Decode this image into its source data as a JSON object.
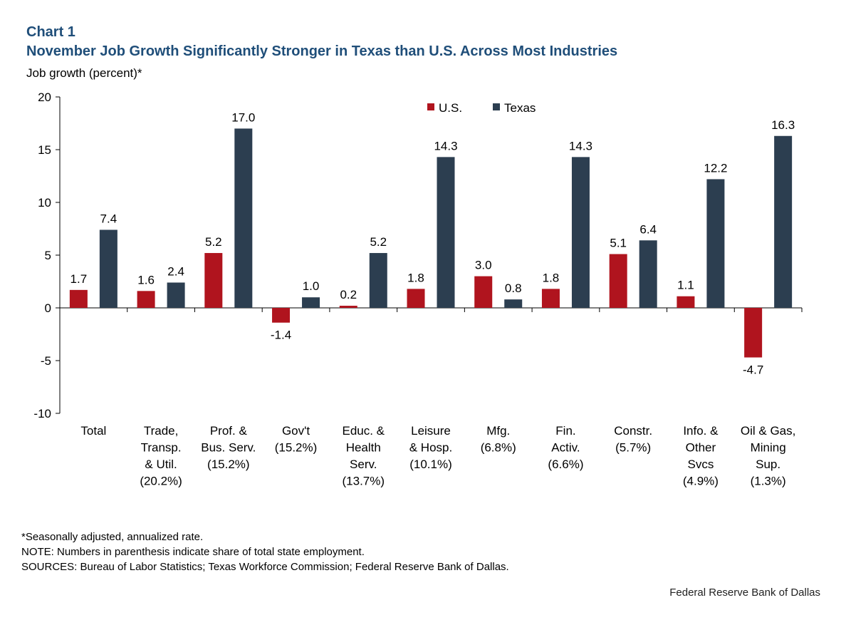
{
  "header": {
    "chart_label": "Chart 1",
    "title": "November Job Growth Significantly Stronger in Texas than U.S. Across Most Industries",
    "y_axis_label": "Job growth (percent)*"
  },
  "chart_data": {
    "type": "bar",
    "categories": [
      [
        "Total"
      ],
      [
        "Trade,",
        "Transp.",
        "& Util.",
        "(20.2%)"
      ],
      [
        "Prof. &",
        "Bus. Serv.",
        "(15.2%)"
      ],
      [
        "Gov't",
        "(15.2%)"
      ],
      [
        "Educ. &",
        "Health",
        "Serv.",
        "(13.7%)"
      ],
      [
        "Leisure",
        "& Hosp.",
        "(10.1%)"
      ],
      [
        "Mfg.",
        "(6.8%)"
      ],
      [
        "Fin.",
        "Activ.",
        "(6.6%)"
      ],
      [
        "Constr.",
        "(5.7%)"
      ],
      [
        "Info. &",
        "Other",
        "Svcs",
        "(4.9%)"
      ],
      [
        "Oil & Gas,",
        "Mining",
        "Sup.",
        "(1.3%)"
      ]
    ],
    "series": [
      {
        "name": "U.S.",
        "color": "#b0141e",
        "values": [
          1.7,
          1.6,
          5.2,
          -1.4,
          0.2,
          1.8,
          3.0,
          1.8,
          5.1,
          1.1,
          -4.7
        ],
        "labels": [
          "1.7",
          "1.6",
          "5.2",
          "-1.4",
          "0.2",
          "1.8",
          "3.0",
          "1.8",
          "5.1",
          "1.1",
          "-4.7"
        ]
      },
      {
        "name": "Texas",
        "color": "#2c3e50",
        "values": [
          7.4,
          2.4,
          17.0,
          1.0,
          5.2,
          14.3,
          0.8,
          14.3,
          6.4,
          12.2,
          16.3
        ],
        "labels": [
          "7.4",
          "2.4",
          "17.0",
          "1.0",
          "5.2",
          "14.3",
          "0.8",
          "14.3",
          "6.4",
          "12.2",
          "16.3"
        ]
      }
    ],
    "ylim": [
      -10,
      20
    ],
    "yticks": [
      20,
      15,
      10,
      5,
      0,
      -5,
      -10
    ],
    "ytick_labels": [
      "20",
      "15",
      "10",
      "5",
      "0",
      "-5",
      "-10"
    ],
    "legend_position": "top-center",
    "grid": false
  },
  "footer": {
    "notes": [
      "*Seasonally adjusted, annualized rate.",
      "NOTE: Numbers in parenthesis indicate share of total state employment.",
      "SOURCES: Bureau of Labor Statistics; Texas Workforce Commission; Federal Reserve Bank of Dallas."
    ],
    "credit": "Federal Reserve Bank of Dallas"
  }
}
